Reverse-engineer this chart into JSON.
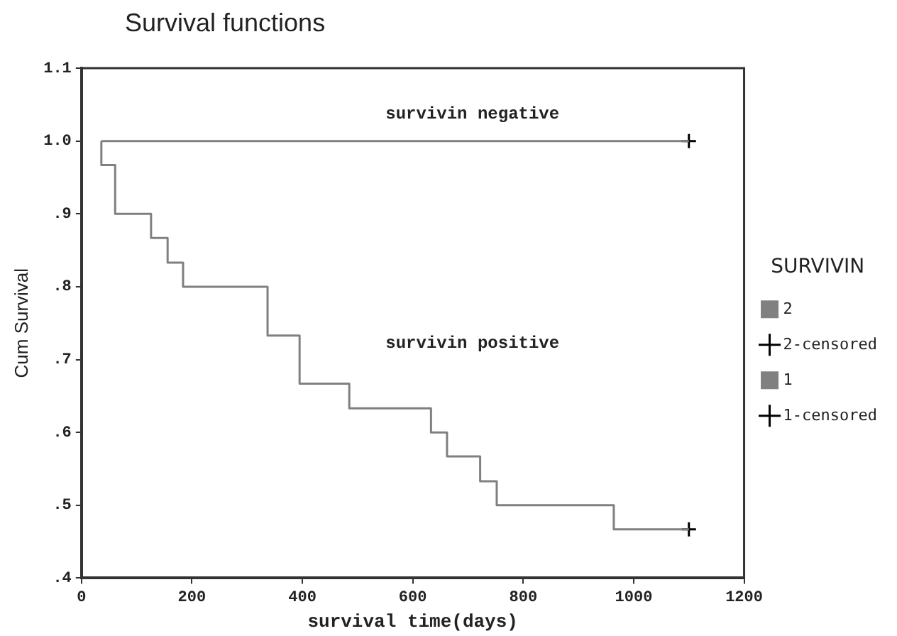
{
  "chart_data": {
    "type": "step",
    "title": "Survival functions",
    "xlabel": "survival time(days)",
    "ylabel": "Cum Survival",
    "legend_title": "SURVIVIN",
    "xlim": [
      0,
      1200
    ],
    "xticks": [
      0,
      200,
      400,
      600,
      800,
      1000,
      1200
    ],
    "ylim": [
      0.4,
      1.1
    ],
    "yticks": [
      {
        "value": 0.4,
        "label": ".4"
      },
      {
        "value": 0.5,
        "label": ".5"
      },
      {
        "value": 0.6,
        "label": ".6"
      },
      {
        "value": 0.7,
        "label": ".7"
      },
      {
        "value": 0.8,
        "label": ".8"
      },
      {
        "value": 0.9,
        "label": ".9"
      },
      {
        "value": 1.0,
        "label": "1.0"
      },
      1.1
    ],
    "grid": false,
    "legend": "right",
    "annotations": [
      "survivin negative",
      "survivin positive"
    ],
    "series": [
      {
        "name": "2",
        "color": "#808080",
        "x": [
          36,
          36,
          61,
          126,
          156,
          184,
          337,
          395,
          485,
          633,
          662,
          722,
          752,
          964,
          1100
        ],
        "values": [
          1.0,
          0.967,
          0.9,
          0.867,
          0.833,
          0.8,
          0.733,
          0.667,
          0.633,
          0.6,
          0.567,
          0.533,
          0.5,
          0.467,
          0.467
        ]
      },
      {
        "name": "2-censored",
        "type": "scatter",
        "marker": "cross",
        "color": "#000000",
        "x": [
          1100
        ],
        "values": [
          0.467
        ]
      },
      {
        "name": "1",
        "color": "#808080",
        "x": [
          36,
          1100
        ],
        "values": [
          1.0,
          1.0
        ]
      },
      {
        "name": "1-censored",
        "type": "scatter",
        "marker": "cross",
        "color": "#000000",
        "x": [
          1100
        ],
        "values": [
          1.0
        ]
      }
    ]
  }
}
